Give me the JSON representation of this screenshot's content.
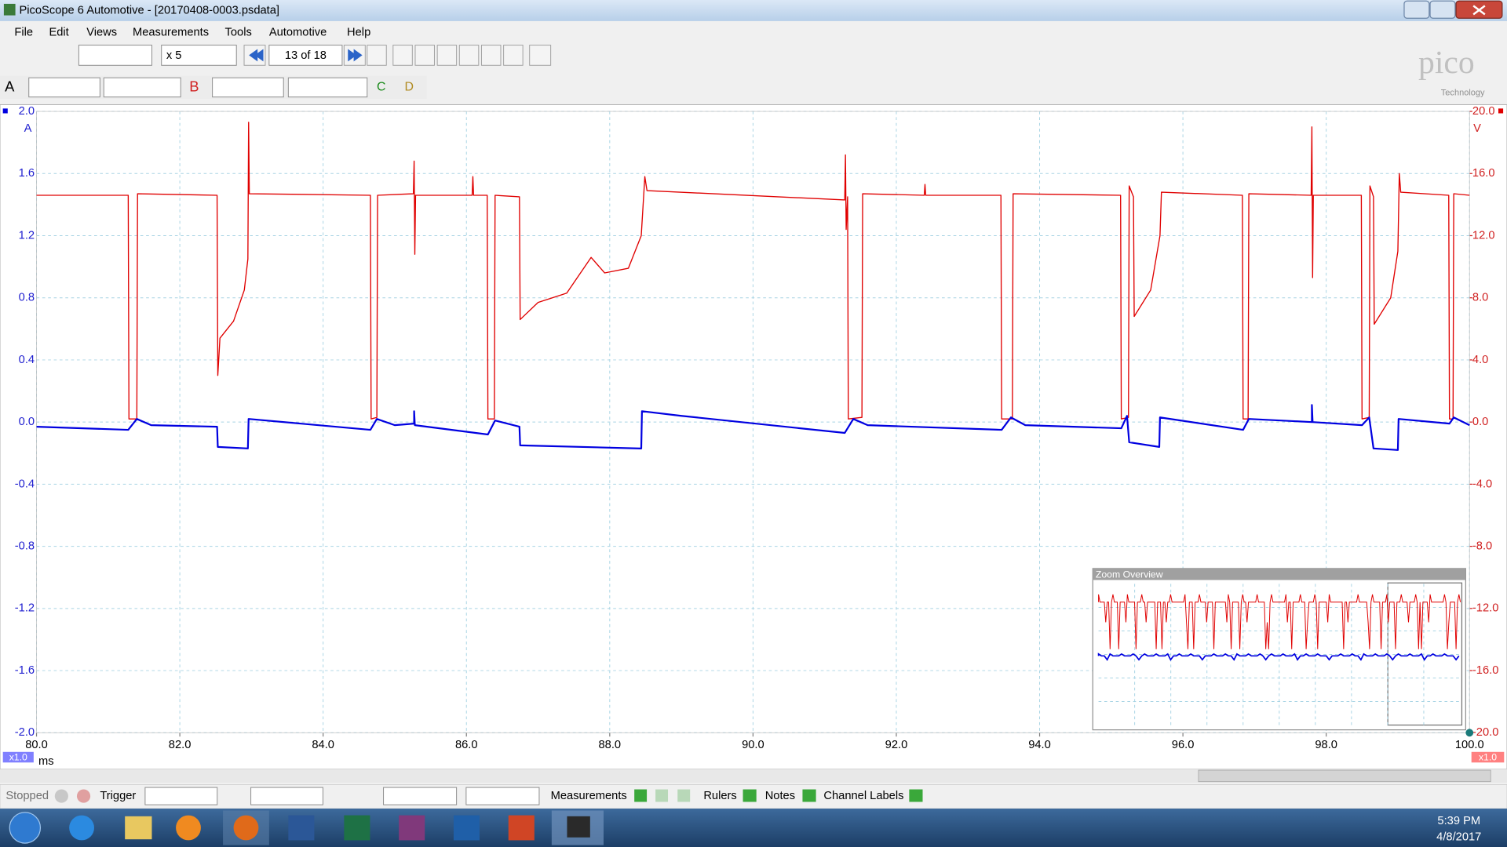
{
  "window": {
    "title": "PicoScope 6 Automotive - [20170408-0003.psdata]"
  },
  "menu": [
    "File",
    "Edit",
    "Views",
    "Measurements",
    "Tools",
    "Automotive",
    "Help"
  ],
  "toolbar": {
    "zoom_factor": "x 5",
    "buffer": "13 of 18"
  },
  "channel_bar": {
    "channel_c": "C",
    "channel_d": "D"
  },
  "logo": {
    "name": "pico",
    "sub": "Technology"
  },
  "chart_data": {
    "type": "line",
    "y_unit": "A",
    "y2_unit": "V",
    "x_unit": "ms",
    "scale_labels": [
      "x1.0",
      "x1.0"
    ],
    "xlim": [
      80,
      100
    ],
    "xticks": [
      {
        "value": 80,
        "label": "80.0"
      },
      {
        "value": 82,
        "label": "82.0"
      },
      {
        "value": 84,
        "label": "84.0"
      },
      {
        "value": 86,
        "label": "86.0"
      },
      {
        "value": 88,
        "label": "88.0"
      },
      {
        "value": 90,
        "label": "90.0"
      },
      {
        "value": 92,
        "label": "92.0"
      },
      {
        "value": 94,
        "label": "94.0"
      },
      {
        "value": 96,
        "label": "96.0"
      },
      {
        "value": 98,
        "label": "98.0"
      },
      {
        "value": 100,
        "label": "100.0"
      }
    ],
    "ylim": [
      -2,
      2
    ],
    "yticks": [
      {
        "value": -2,
        "label": "-2.0"
      },
      {
        "value": -1.6,
        "label": "-1.6"
      },
      {
        "value": -1.2,
        "label": "-1.2"
      },
      {
        "value": -0.8,
        "label": "-0.8"
      },
      {
        "value": -0.4,
        "label": "-0.4"
      },
      {
        "value": 0,
        "label": "0.0"
      },
      {
        "value": 0.4,
        "label": "0.4"
      },
      {
        "value": 0.8,
        "label": "0.8"
      },
      {
        "value": 1.2,
        "label": "1.2"
      },
      {
        "value": 1.6,
        "label": "1.6"
      },
      {
        "value": 2,
        "label": "2.0"
      }
    ],
    "y2lim": [
      -20,
      20
    ],
    "y2ticks": [
      {
        "value": -20,
        "label": "-20.0"
      },
      {
        "value": -16,
        "label": "-16.0"
      },
      {
        "value": -12,
        "label": "-12.0"
      },
      {
        "value": -8,
        "label": "-8.0"
      },
      {
        "value": -4,
        "label": "-4.0"
      },
      {
        "value": 0,
        "label": "0.0"
      },
      {
        "value": 4,
        "label": "4.0"
      },
      {
        "value": 8,
        "label": "8.0"
      },
      {
        "value": 12,
        "label": "12.0"
      },
      {
        "value": 16,
        "label": "16.0"
      },
      {
        "value": 20,
        "label": "20.0"
      }
    ],
    "grid": true,
    "series": [
      {
        "name": "A",
        "color": "#0000e0",
        "axis": "y",
        "x": [
          80,
          81.28,
          81.4,
          81.6,
          82.52,
          82.53,
          82.95,
          82.96,
          84.66,
          84.75,
          85.0,
          85.27,
          85.27,
          85.28,
          86.3,
          86.4,
          86.74,
          86.75,
          88.44,
          88.45,
          89.0,
          91.28,
          91.4,
          91.6,
          93.47,
          93.6,
          93.8,
          95.14,
          95.22,
          95.25,
          95.67,
          95.68,
          96.84,
          96.92,
          97.8,
          97.8,
          97.81,
          98.5,
          98.6,
          98.66,
          99.0,
          99.01,
          99.72,
          99.78,
          100
        ],
        "values": [
          -0.03,
          -0.05,
          0.02,
          -0.02,
          -0.03,
          -0.16,
          -0.17,
          0.02,
          -0.05,
          0.02,
          -0.02,
          -0.01,
          0.07,
          -0.02,
          -0.08,
          0.01,
          -0.03,
          -0.15,
          -0.17,
          0.07,
          0.04,
          -0.07,
          0.02,
          -0.02,
          -0.05,
          0.03,
          -0.02,
          -0.04,
          0.04,
          -0.13,
          -0.16,
          0.03,
          -0.05,
          0.02,
          0.0,
          0.11,
          0.0,
          -0.02,
          0.03,
          -0.17,
          -0.18,
          0.02,
          -0.01,
          0.03,
          -0.02
        ]
      },
      {
        "name": "B",
        "color": "#e00000",
        "axis": "y2",
        "x": [
          80,
          81.28,
          81.29,
          81.4,
          81.41,
          82.52,
          82.53,
          82.56,
          82.75,
          82.9,
          82.95,
          82.96,
          82.97,
          84.66,
          84.67,
          84.75,
          84.76,
          85.26,
          85.27,
          85.28,
          85.29,
          86.08,
          86.09,
          86.1,
          86.29,
          86.3,
          86.39,
          86.4,
          86.74,
          86.75,
          87.0,
          87.4,
          87.74,
          87.93,
          88.26,
          88.44,
          88.49,
          88.52,
          91.28,
          91.29,
          91.3,
          91.32,
          91.33,
          91.52,
          91.53,
          92.39,
          92.4,
          92.41,
          93.46,
          93.47,
          93.62,
          93.63,
          95.13,
          95.14,
          95.24,
          95.25,
          95.31,
          95.32,
          95.55,
          95.68,
          95.7,
          96.83,
          96.84,
          96.91,
          96.92,
          97.79,
          97.8,
          97.81,
          97.82,
          98.49,
          98.5,
          98.6,
          98.61,
          98.66,
          98.67,
          98.9,
          99.0,
          99.02,
          99.04,
          99.71,
          99.72,
          99.77,
          99.78,
          100
        ],
        "values": [
          14.6,
          14.6,
          0.2,
          0.2,
          14.7,
          14.6,
          3.0,
          5.4,
          6.5,
          8.5,
          10.5,
          19.3,
          14.7,
          14.6,
          0.2,
          0.3,
          14.6,
          14.7,
          16.8,
          10.8,
          14.6,
          14.6,
          15.8,
          14.6,
          14.6,
          0.2,
          0.2,
          14.6,
          14.5,
          6.6,
          7.7,
          8.3,
          10.6,
          9.6,
          9.9,
          12.0,
          15.8,
          14.9,
          14.3,
          17.2,
          12.4,
          14.5,
          0.2,
          0.3,
          14.7,
          14.6,
          15.3,
          14.6,
          14.6,
          0.2,
          0.2,
          14.7,
          14.6,
          0.2,
          0.3,
          15.2,
          14.5,
          6.8,
          8.5,
          12.0,
          14.8,
          14.6,
          0.2,
          0.2,
          14.7,
          14.6,
          19.0,
          9.3,
          14.6,
          14.6,
          0.2,
          0.3,
          15.2,
          14.5,
          6.3,
          8.0,
          11.0,
          16.0,
          14.8,
          14.6,
          0.2,
          0.2,
          14.7,
          14.6
        ]
      }
    ]
  },
  "zoom_overview": {
    "title": "Zoom Overview"
  },
  "status_bar": {
    "state": "Stopped",
    "trigger": "Trigger",
    "measurements": "Measurements",
    "rulers": "Rulers",
    "notes": "Notes",
    "channel_labels": "Channel Labels"
  },
  "taskbar": {
    "time": "5:39 PM",
    "date": "4/8/2017"
  }
}
